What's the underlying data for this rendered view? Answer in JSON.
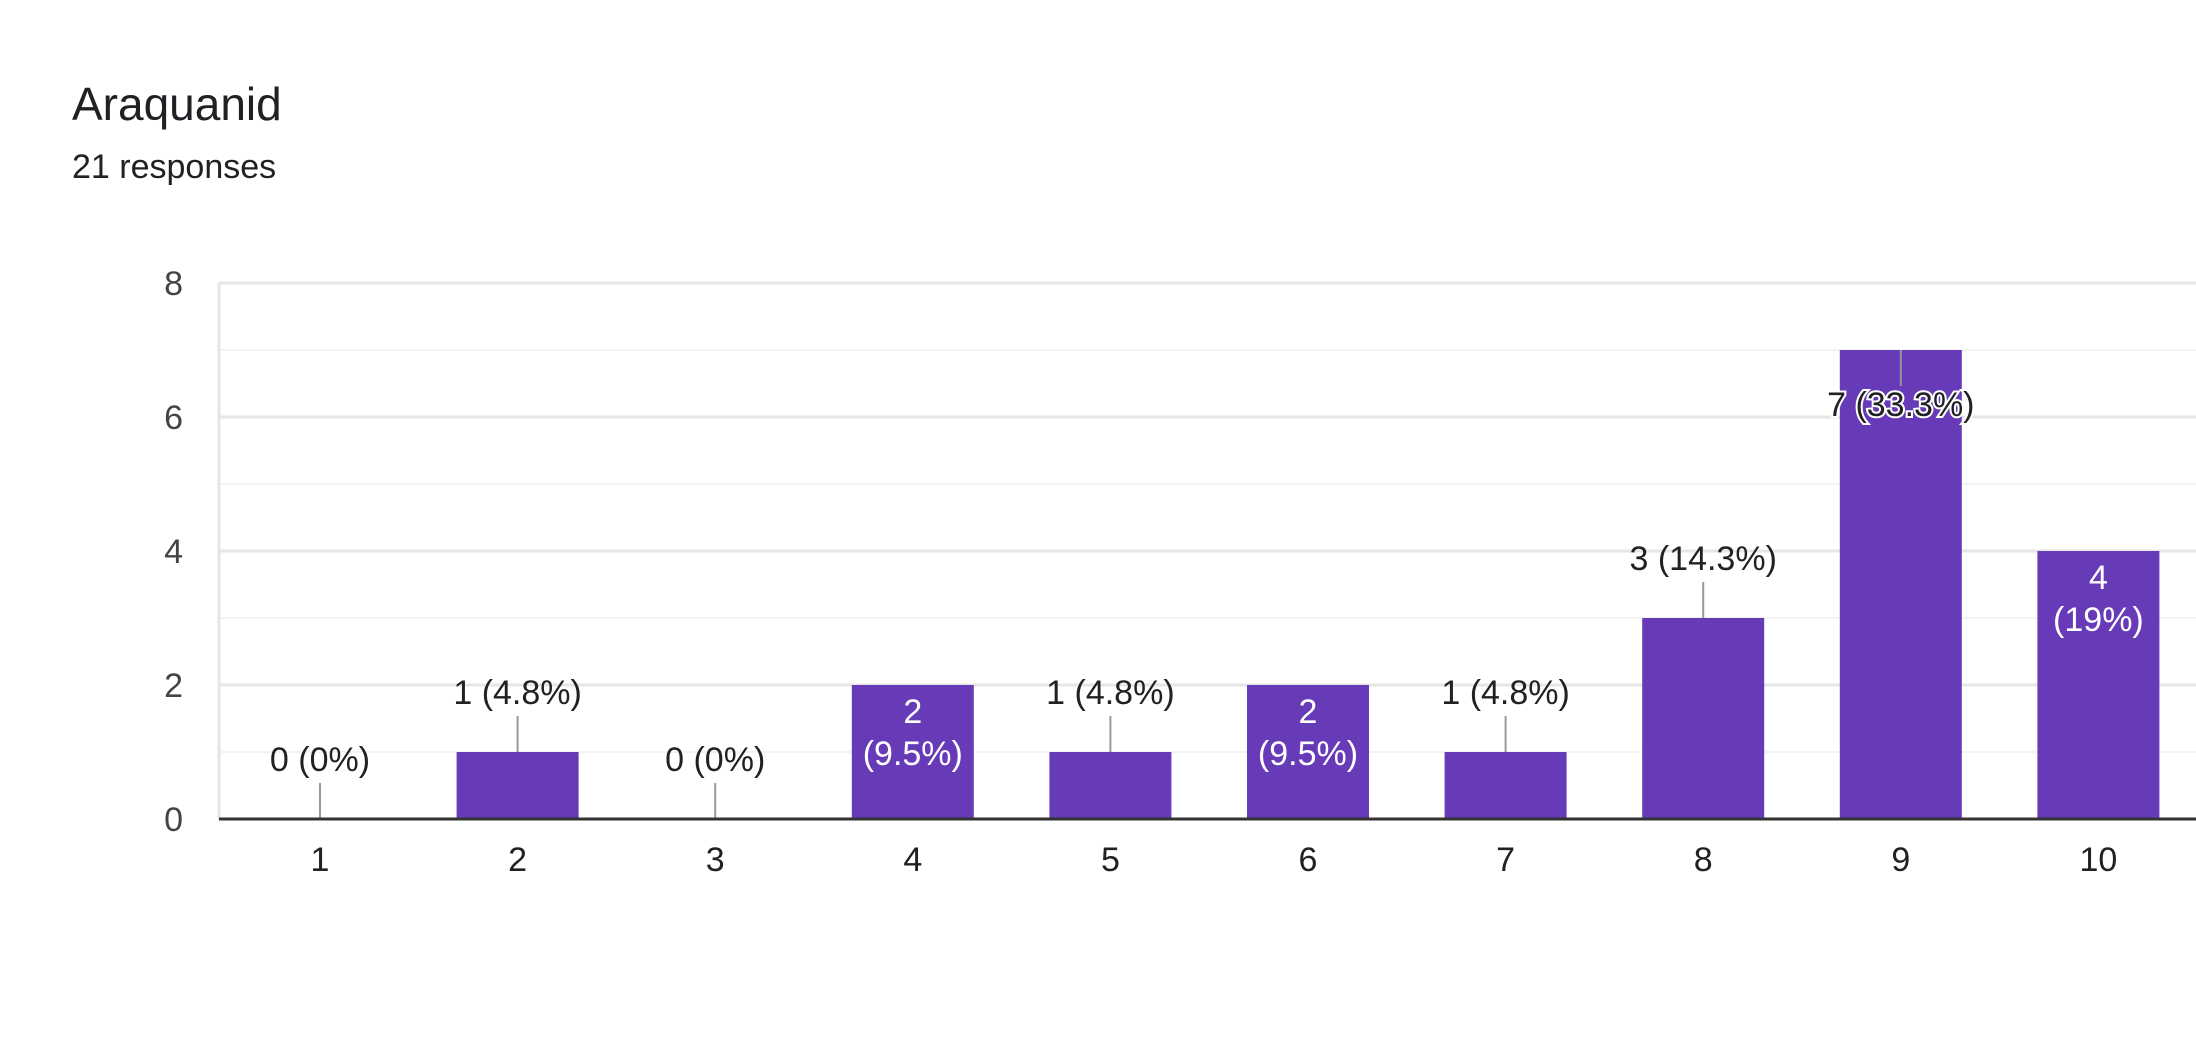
{
  "card": {
    "title": "Araquanid",
    "responses": "21 responses"
  },
  "colors": {
    "bar": "#673ab7",
    "grid": "#e6e6e6",
    "minor_grid": "#f3f3f3",
    "axis": "#333333",
    "leader": "#999999",
    "label_dark": "#202124",
    "label_light": "#ffffff",
    "tick_text": "#444444"
  },
  "chart_data": {
    "type": "bar",
    "categories": [
      "1",
      "2",
      "3",
      "4",
      "5",
      "6",
      "7",
      "8",
      "9",
      "10"
    ],
    "values": [
      0,
      1,
      0,
      2,
      1,
      2,
      1,
      3,
      7,
      4
    ],
    "data_labels": [
      "0 (0%)",
      "1 (4.8%)",
      "0 (0%)",
      "2 (9.5%)",
      "1 (4.8%)",
      "2 (9.5%)",
      "1 (4.8%)",
      "3 (14.3%)",
      "7 (33.3%)",
      "4 (19%)"
    ],
    "label_inside": [
      false,
      false,
      false,
      true,
      false,
      true,
      false,
      false,
      true,
      true
    ],
    "y_ticks": [
      0,
      2,
      4,
      6,
      8
    ],
    "ylim": [
      0,
      8
    ],
    "title": "",
    "xlabel": "",
    "ylabel": "",
    "grid": true,
    "minor_grid": true,
    "legend": "none"
  }
}
